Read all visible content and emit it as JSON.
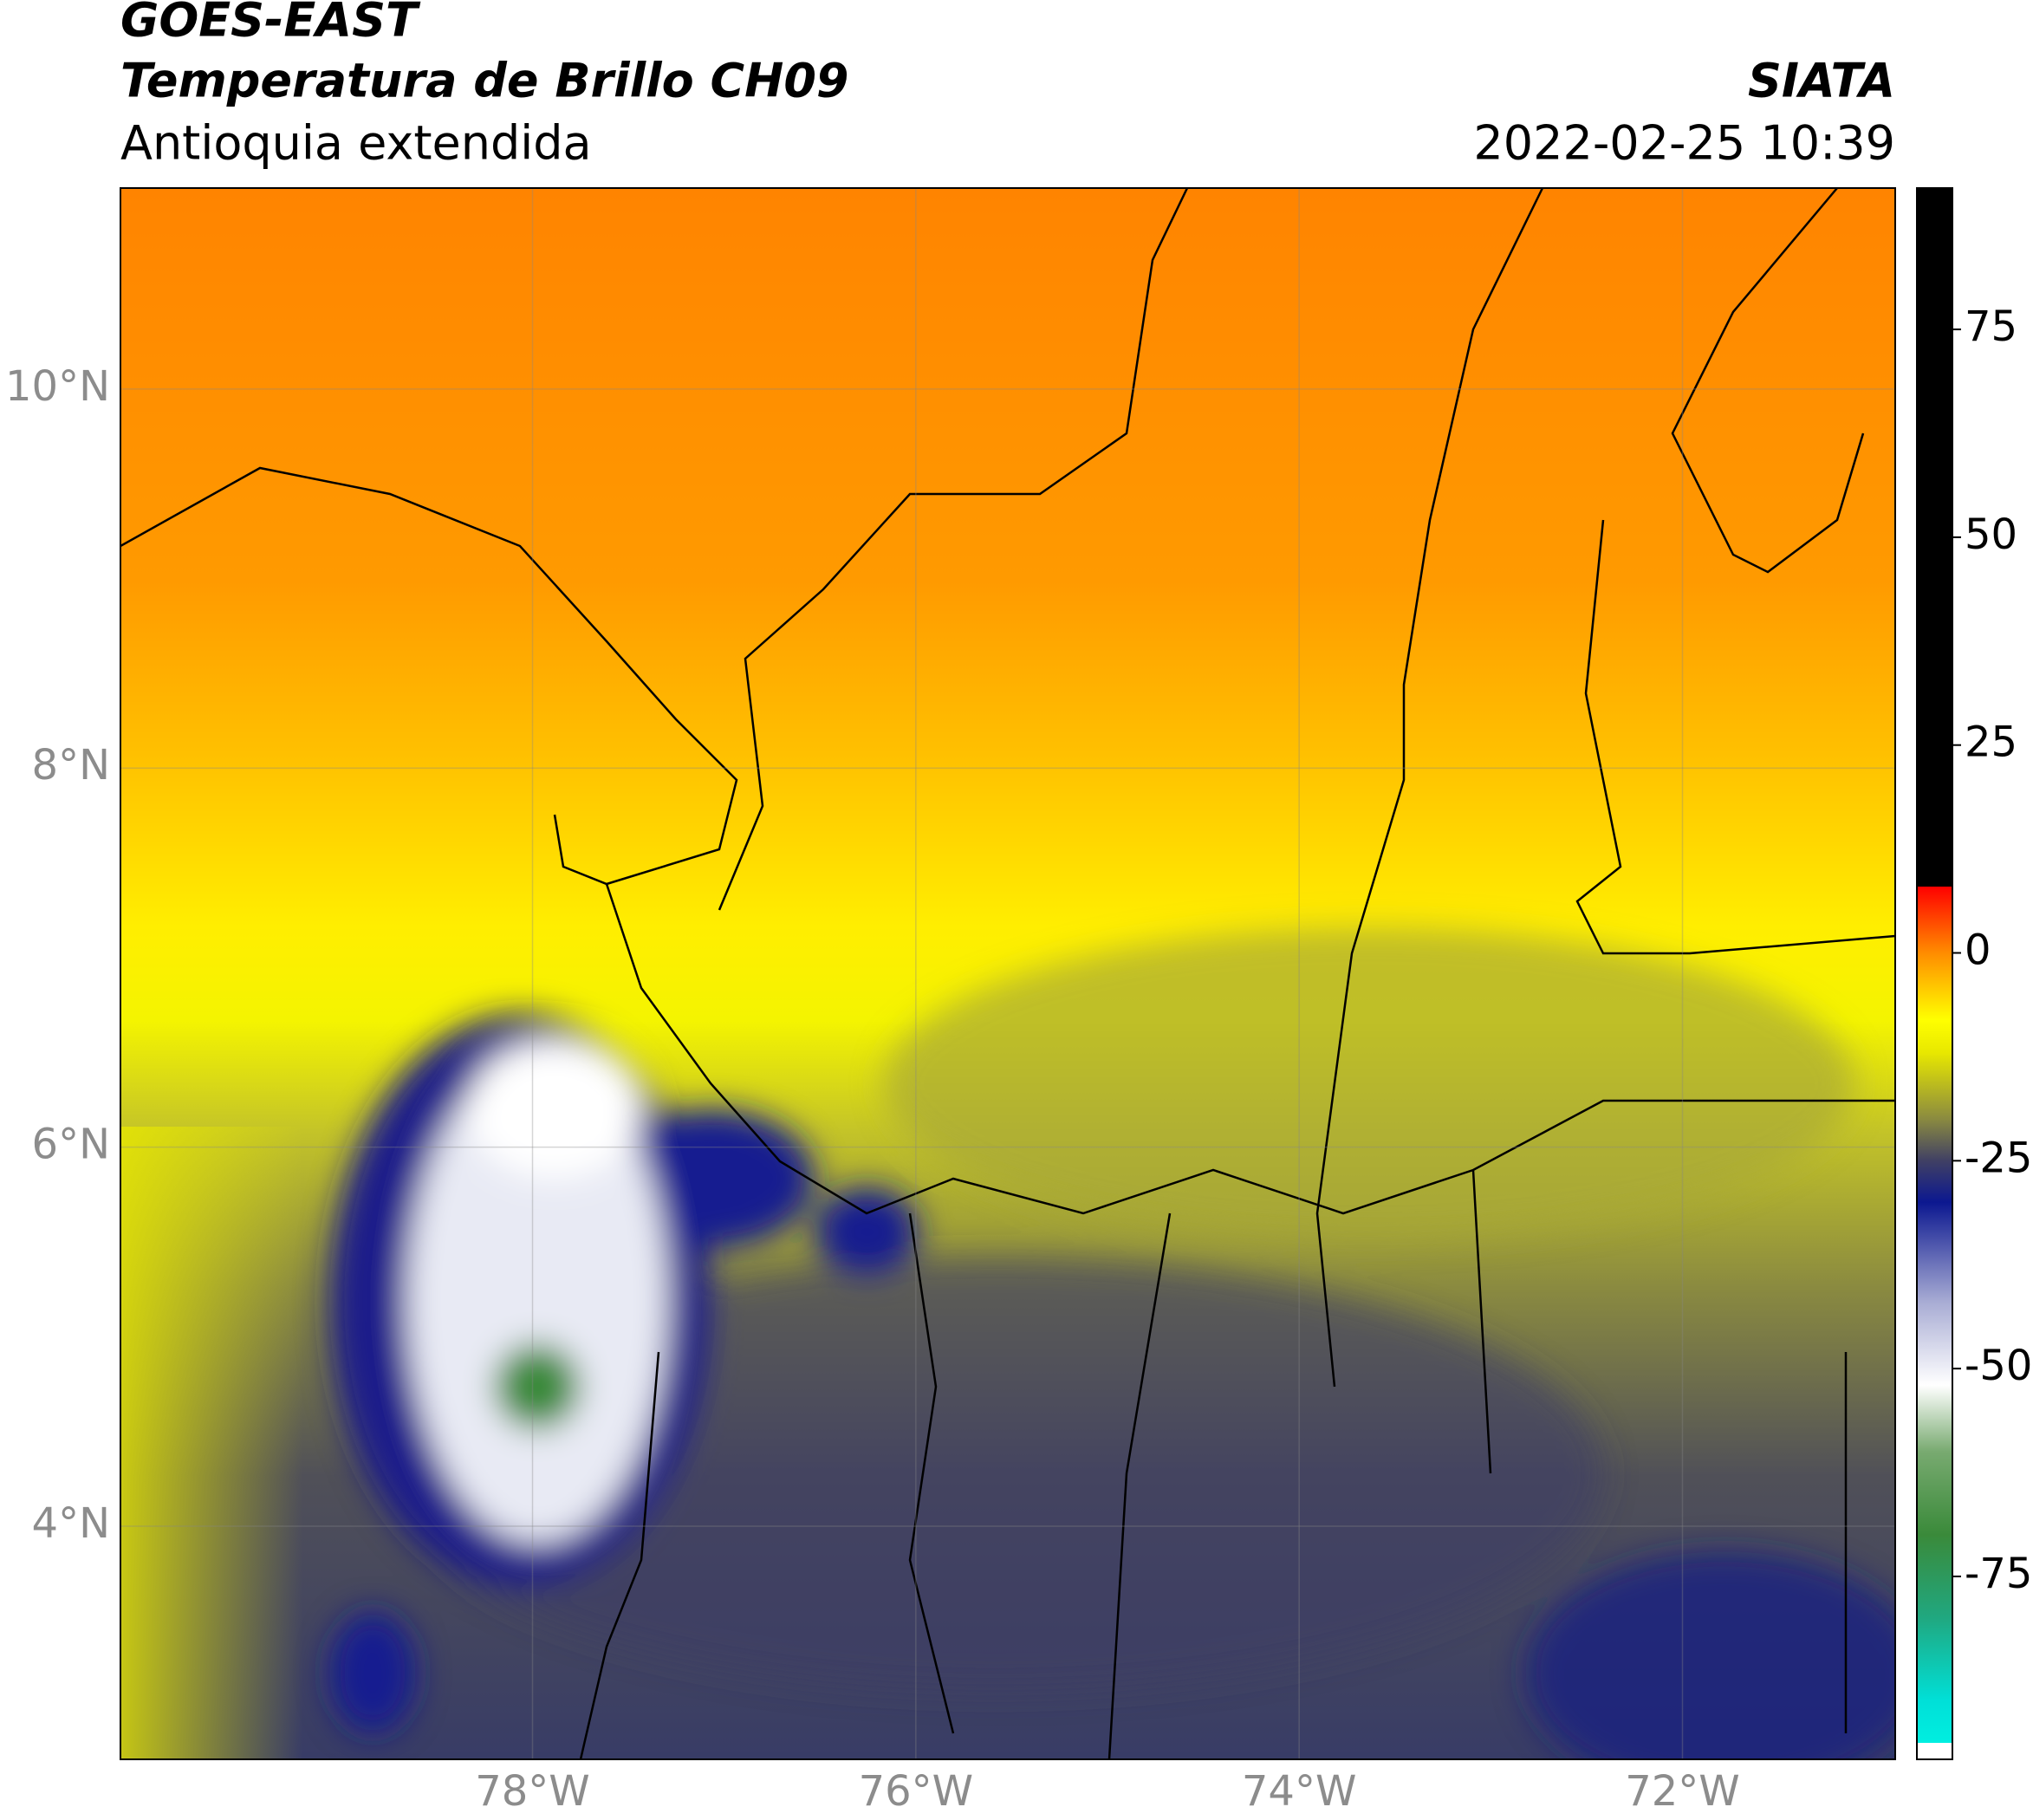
{
  "header": {
    "title1": "GOES-EAST",
    "title2": "Temperatura de Brillo CH09",
    "subtitle": "Antioquia extendida",
    "org": "SIATA",
    "datetime": "2022-02-25 10:39"
  },
  "map": {
    "xlim": [
      -80.15,
      -70.89
    ],
    "ylim": [
      2.77,
      11.06
    ],
    "xticks": [
      {
        "value": -78,
        "label": "78°W"
      },
      {
        "value": -76,
        "label": "76°W"
      },
      {
        "value": -74,
        "label": "74°W"
      },
      {
        "value": -72,
        "label": "72°W"
      }
    ],
    "yticks": [
      {
        "value": 4,
        "label": "4°N"
      },
      {
        "value": 6,
        "label": "6°N"
      },
      {
        "value": 8,
        "label": "8°N"
      },
      {
        "value": 10,
        "label": "10°N"
      }
    ]
  },
  "colorbar": {
    "lim": [
      -97,
      92
    ],
    "ticks": [
      75,
      50,
      25,
      0,
      -25,
      -50,
      -75
    ],
    "stops": [
      [
        -97,
        "#ffffff"
      ],
      [
        -95,
        "#ffffff"
      ],
      [
        -95,
        "#00eee0"
      ],
      [
        -90,
        "#00e0d8"
      ],
      [
        -80,
        "#20a880"
      ],
      [
        -70,
        "#3a8a3a"
      ],
      [
        -60,
        "#78aa70"
      ],
      [
        -52,
        "#ffffff"
      ],
      [
        -42,
        "#a8acd4"
      ],
      [
        -30,
        "#0c1890"
      ],
      [
        -25,
        "#404064"
      ],
      [
        -20,
        "#8a8a40"
      ],
      [
        -12,
        "#e8e800"
      ],
      [
        -8,
        "#ffff00"
      ],
      [
        0,
        "#ff8c00"
      ],
      [
        8,
        "#ff0000"
      ],
      [
        8,
        "#000000"
      ],
      [
        92,
        "#000000"
      ]
    ]
  }
}
